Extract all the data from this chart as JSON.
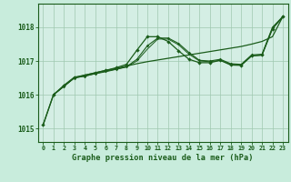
{
  "background_color": "#c8ecdc",
  "plot_bg_color": "#d4eee4",
  "grid_color": "#9fc8b0",
  "line_color": "#1a5c1a",
  "xlabel": "Graphe pression niveau de la mer (hPa)",
  "xlim": [
    -0.5,
    23.5
  ],
  "ylim": [
    1014.6,
    1018.7
  ],
  "yticks": [
    1015,
    1016,
    1017,
    1018
  ],
  "xticks": [
    0,
    1,
    2,
    3,
    4,
    5,
    6,
    7,
    8,
    9,
    10,
    11,
    12,
    13,
    14,
    15,
    16,
    17,
    18,
    19,
    20,
    21,
    22,
    23
  ],
  "line1_x": [
    0,
    1,
    2,
    3,
    4,
    5,
    6,
    7,
    8,
    9,
    10,
    11,
    12,
    13,
    14,
    15,
    16,
    17,
    18,
    19,
    20,
    21,
    22,
    23
  ],
  "line1_y": [
    1015.1,
    1016.0,
    1016.25,
    1016.5,
    1016.58,
    1016.65,
    1016.72,
    1016.78,
    1016.85,
    1016.92,
    1016.98,
    1017.03,
    1017.08,
    1017.13,
    1017.18,
    1017.23,
    1017.28,
    1017.33,
    1017.38,
    1017.43,
    1017.5,
    1017.58,
    1017.72,
    1018.32
  ],
  "line2_x": [
    0,
    1,
    2,
    3,
    4,
    5,
    6,
    7,
    8,
    9,
    10,
    11,
    12,
    13,
    14,
    15,
    16,
    17,
    18,
    19,
    20,
    21,
    22,
    23
  ],
  "line2_y": [
    1015.1,
    1016.0,
    1016.28,
    1016.52,
    1016.58,
    1016.65,
    1016.72,
    1016.8,
    1016.9,
    1017.32,
    1017.72,
    1017.72,
    1017.58,
    1017.3,
    1017.05,
    1016.95,
    1016.95,
    1017.02,
    1016.88,
    1016.87,
    1017.15,
    1017.18,
    1017.95,
    1018.32
  ],
  "line3_x": [
    1,
    2,
    3,
    4,
    5,
    6,
    7,
    8,
    9,
    10,
    11,
    12,
    13,
    14,
    15,
    16,
    17,
    18,
    19,
    20,
    21,
    22,
    23
  ],
  "line3_y": [
    1016.0,
    1016.25,
    1016.5,
    1016.55,
    1016.63,
    1016.7,
    1016.76,
    1016.83,
    1017.05,
    1017.45,
    1017.68,
    1017.68,
    1017.52,
    1017.25,
    1017.02,
    1017.0,
    1017.05,
    1016.92,
    1016.9,
    1017.18,
    1017.2,
    1018.0,
    1018.32
  ],
  "line4_x": [
    1,
    2,
    3,
    4,
    5,
    6,
    7,
    8,
    9,
    10,
    11,
    12,
    13,
    14,
    15,
    16,
    17,
    18,
    19,
    20,
    21,
    22,
    23
  ],
  "line4_y": [
    1016.0,
    1016.25,
    1016.5,
    1016.55,
    1016.62,
    1016.68,
    1016.75,
    1016.82,
    1017.0,
    1017.35,
    1017.65,
    1017.65,
    1017.48,
    1017.2,
    1017.0,
    1016.98,
    1017.02,
    1016.9,
    1016.88,
    1017.15,
    1017.17,
    1017.97,
    1018.3
  ]
}
